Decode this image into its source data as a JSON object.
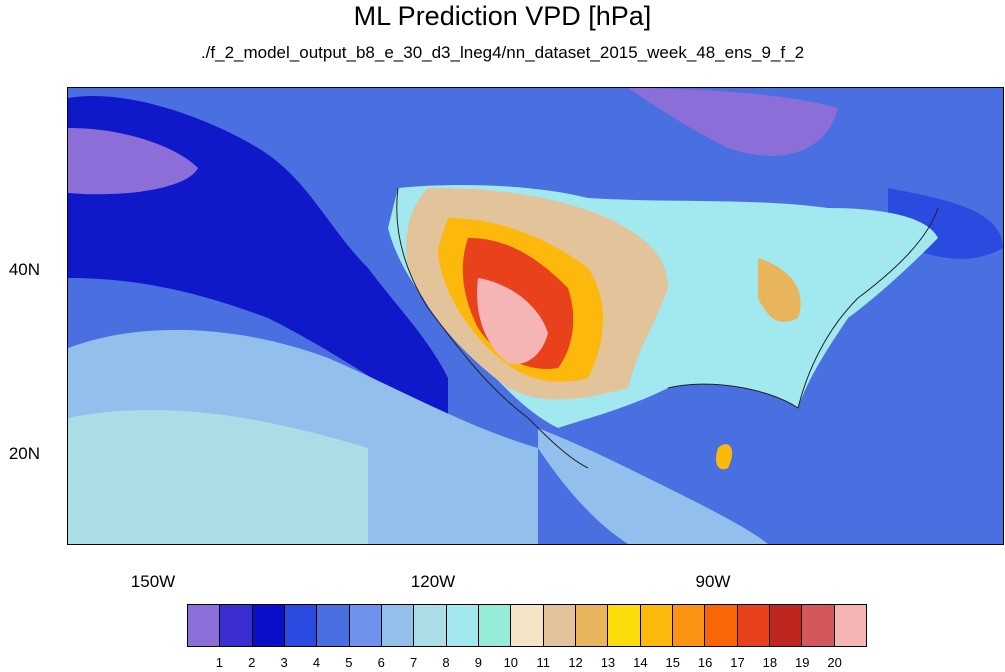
{
  "title": "ML Prediction VPD [hPa]",
  "subtitle": "./f_2_model_output_b8_e_30_d3_lneg4/nn_dataset_2015_week_48_ens_9_f_2",
  "map": {
    "lat_labels": [
      "40N",
      "20N"
    ],
    "lon_labels": [
      "150W",
      "120W",
      "90W"
    ],
    "ocean_color": "#4a6fe0"
  },
  "colorbar": {
    "colors": [
      "#8c6ed8",
      "#3b2ed0",
      "#0a0fc8",
      "#2b4ae0",
      "#4a6fe0",
      "#6e92ee",
      "#92bfec",
      "#aadde6",
      "#a2e9ef",
      "#95ecd8",
      "#f2e4c4",
      "#e3c39a",
      "#e8b45c",
      "#fcdc0a",
      "#fcb90c",
      "#fc9212",
      "#fa6505",
      "#e8411c",
      "#c02620",
      "#d3585c",
      "#f5b5b5"
    ],
    "labels": [
      "1",
      "2",
      "3",
      "4",
      "5",
      "6",
      "7",
      "8",
      "9",
      "10",
      "11",
      "12",
      "13",
      "14",
      "15",
      "16",
      "17",
      "18",
      "19",
      "20"
    ]
  }
}
